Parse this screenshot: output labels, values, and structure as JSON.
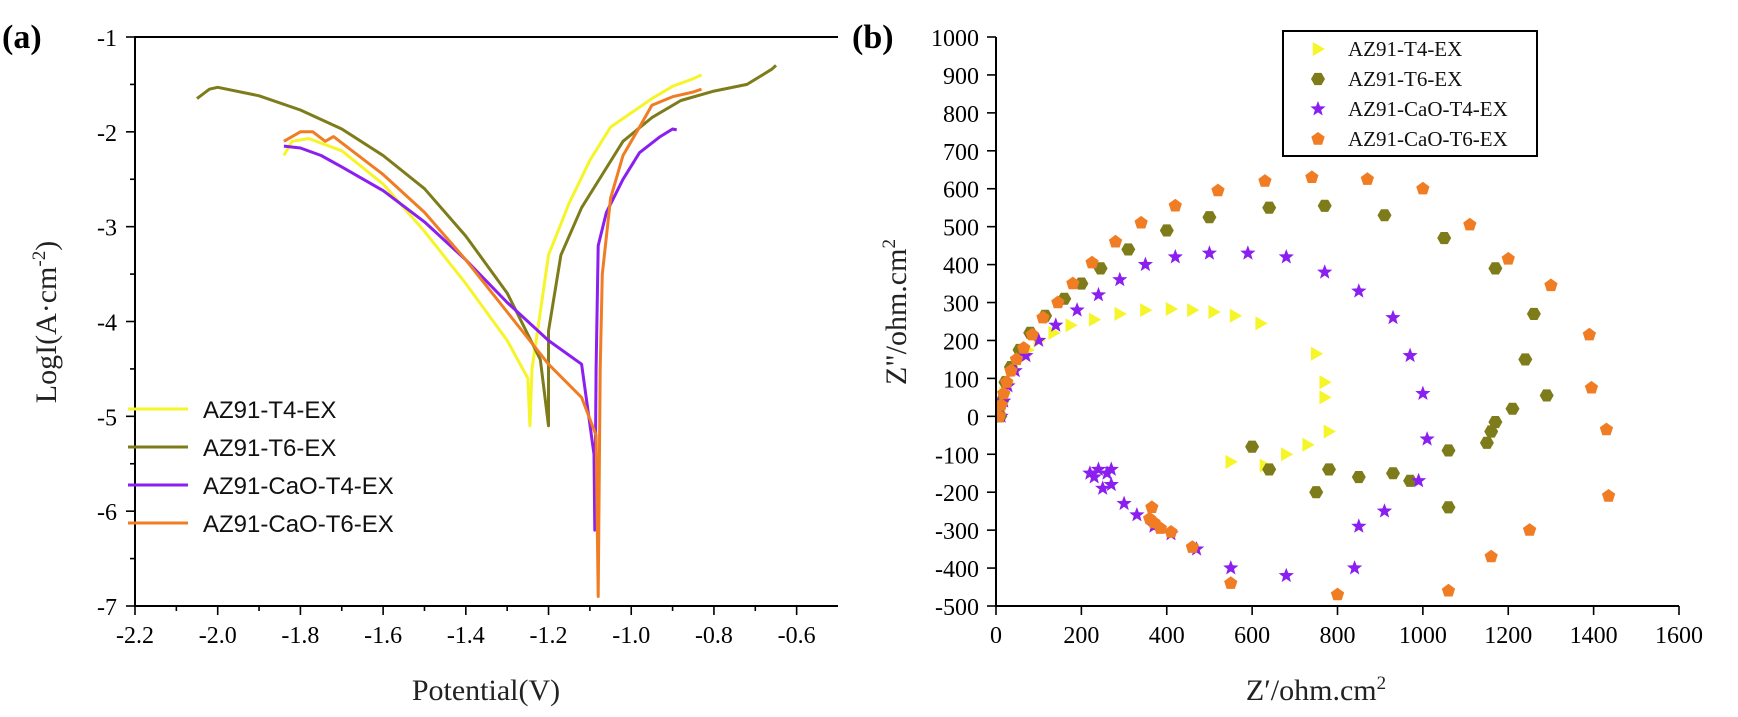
{
  "chart_data": [
    {
      "panel": "(a)",
      "type": "line",
      "xlabel": "Potential(V)",
      "ylabel_prefix": "LogI(A·cm",
      "ylabel_sup": "-2",
      "ylabel_suffix": ")",
      "xlim": [
        -2.2,
        -0.5
      ],
      "ylim": [
        -7,
        -1
      ],
      "xticks": [
        -2.2,
        -2.0,
        -1.8,
        -1.6,
        -1.4,
        -1.2,
        -1.0,
        -0.8,
        -0.6
      ],
      "xtick_labels": [
        "-2.2",
        "-2.0",
        "-1.8",
        "-1.6",
        "-1.4",
        "-1.2",
        "-1.0",
        "-0.8",
        "-0.6"
      ],
      "yticks": [
        -7,
        -6,
        -5,
        -4,
        -3,
        -2,
        -1
      ],
      "ytick_labels": [
        "-7",
        "-6",
        "-5",
        "-4",
        "-3",
        "-2",
        "-1"
      ],
      "legend_position": "bottom-left",
      "series": [
        {
          "name": "AZ91-T4-EX",
          "color": "#f5f52a",
          "points": [
            [
              -1.84,
              -2.25
            ],
            [
              -1.82,
              -2.1
            ],
            [
              -1.78,
              -2.07
            ],
            [
              -1.7,
              -2.2
            ],
            [
              -1.6,
              -2.55
            ],
            [
              -1.5,
              -3.05
            ],
            [
              -1.4,
              -3.6
            ],
            [
              -1.3,
              -4.2
            ],
            [
              -1.25,
              -4.6
            ],
            [
              -1.245,
              -5.1
            ],
            [
              -1.24,
              -4.5
            ],
            [
              -1.22,
              -3.9
            ],
            [
              -1.2,
              -3.3
            ],
            [
              -1.15,
              -2.75
            ],
            [
              -1.1,
              -2.3
            ],
            [
              -1.05,
              -1.95
            ],
            [
              -1.0,
              -1.8
            ],
            [
              -0.95,
              -1.65
            ],
            [
              -0.9,
              -1.52
            ],
            [
              -0.85,
              -1.44
            ],
            [
              -0.83,
              -1.4
            ]
          ]
        },
        {
          "name": "AZ91-T6-EX",
          "color": "#7e7c1a",
          "points": [
            [
              -2.05,
              -1.65
            ],
            [
              -2.02,
              -1.55
            ],
            [
              -2.0,
              -1.53
            ],
            [
              -1.9,
              -1.62
            ],
            [
              -1.8,
              -1.77
            ],
            [
              -1.7,
              -1.97
            ],
            [
              -1.6,
              -2.25
            ],
            [
              -1.5,
              -2.6
            ],
            [
              -1.4,
              -3.1
            ],
            [
              -1.3,
              -3.7
            ],
            [
              -1.22,
              -4.4
            ],
            [
              -1.2,
              -5.1
            ],
            [
              -1.2,
              -4.1
            ],
            [
              -1.17,
              -3.3
            ],
            [
              -1.12,
              -2.8
            ],
            [
              -1.07,
              -2.45
            ],
            [
              -1.02,
              -2.1
            ],
            [
              -0.95,
              -1.85
            ],
            [
              -0.88,
              -1.67
            ],
            [
              -0.8,
              -1.57
            ],
            [
              -0.72,
              -1.5
            ],
            [
              -0.66,
              -1.34
            ],
            [
              -0.65,
              -1.3
            ]
          ]
        },
        {
          "name": "AZ91-CaO-T4-EX",
          "color": "#8b1ff0",
          "points": [
            [
              -1.84,
              -2.15
            ],
            [
              -1.8,
              -2.17
            ],
            [
              -1.75,
              -2.25
            ],
            [
              -1.7,
              -2.37
            ],
            [
              -1.6,
              -2.62
            ],
            [
              -1.5,
              -2.95
            ],
            [
              -1.4,
              -3.35
            ],
            [
              -1.3,
              -3.8
            ],
            [
              -1.2,
              -4.2
            ],
            [
              -1.12,
              -4.45
            ],
            [
              -1.09,
              -5.4
            ],
            [
              -1.088,
              -6.2
            ],
            [
              -1.085,
              -4.5
            ],
            [
              -1.08,
              -3.2
            ],
            [
              -1.06,
              -2.85
            ],
            [
              -1.02,
              -2.5
            ],
            [
              -0.98,
              -2.22
            ],
            [
              -0.93,
              -2.05
            ],
            [
              -0.9,
              -1.97
            ],
            [
              -0.89,
              -1.98
            ]
          ]
        },
        {
          "name": "AZ91-CaO-T6-EX",
          "color": "#f07d24",
          "points": [
            [
              -1.84,
              -2.1
            ],
            [
              -1.8,
              -2.0
            ],
            [
              -1.77,
              -2.0
            ],
            [
              -1.74,
              -2.1
            ],
            [
              -1.72,
              -2.05
            ],
            [
              -1.6,
              -2.45
            ],
            [
              -1.5,
              -2.85
            ],
            [
              -1.4,
              -3.35
            ],
            [
              -1.3,
              -3.9
            ],
            [
              -1.2,
              -4.45
            ],
            [
              -1.12,
              -4.8
            ],
            [
              -1.085,
              -5.2
            ],
            [
              -1.08,
              -6.9
            ],
            [
              -1.075,
              -4.5
            ],
            [
              -1.07,
              -3.5
            ],
            [
              -1.05,
              -2.7
            ],
            [
              -1.02,
              -2.25
            ],
            [
              -0.98,
              -1.95
            ],
            [
              -0.95,
              -1.72
            ],
            [
              -0.9,
              -1.63
            ],
            [
              -0.85,
              -1.58
            ],
            [
              -0.83,
              -1.55
            ]
          ]
        }
      ]
    },
    {
      "panel": "(b)",
      "type": "scatter",
      "xlabel": "Z′/ohm.cm",
      "xlabel_sup": "2",
      "ylabel": "Z\"/ohm.cm",
      "ylabel_sup": "2",
      "xlim": [
        0,
        1600
      ],
      "ylim": [
        -500,
        1000
      ],
      "xticks": [
        0,
        200,
        400,
        600,
        800,
        1000,
        1200,
        1400,
        1600
      ],
      "xtick_labels": [
        "0",
        "200",
        "400",
        "600",
        "800",
        "1000",
        "1200",
        "1400",
        "1600"
      ],
      "yticks": [
        -500,
        -400,
        -300,
        -200,
        -100,
        0,
        100,
        200,
        300,
        400,
        500,
        600,
        700,
        800,
        900,
        1000
      ],
      "ytick_labels": [
        "-500",
        "-400",
        "-300",
        "-200",
        "-100",
        "0",
        "100",
        "200",
        "300",
        "400",
        "500",
        "600",
        "700",
        "800",
        "900",
        "1000"
      ],
      "legend_position": "top-right",
      "series": [
        {
          "name": "AZ91-T4-EX",
          "marker": "triangle-right",
          "color": "#f5f52a",
          "points": [
            [
              10,
              0
            ],
            [
              14,
              30
            ],
            [
              20,
              60
            ],
            [
              28,
              90
            ],
            [
              40,
              120
            ],
            [
              55,
              150
            ],
            [
              75,
              175
            ],
            [
              100,
              200
            ],
            [
              135,
              220
            ],
            [
              175,
              240
            ],
            [
              230,
              255
            ],
            [
              290,
              270
            ],
            [
              350,
              280
            ],
            [
              410,
              283
            ],
            [
              460,
              280
            ],
            [
              510,
              275
            ],
            [
              560,
              265
            ],
            [
              620,
              245
            ],
            [
              750,
              165
            ],
            [
              770,
              90
            ],
            [
              770,
              50
            ],
            [
              780,
              -40
            ],
            [
              730,
              -75
            ],
            [
              680,
              -100
            ],
            [
              630,
              -130
            ],
            [
              550,
              -120
            ]
          ]
        },
        {
          "name": "AZ91-T6-EX",
          "marker": "hexagon",
          "color": "#7e7c1a",
          "points": [
            [
              10,
              0
            ],
            [
              14,
              40
            ],
            [
              22,
              90
            ],
            [
              35,
              130
            ],
            [
              55,
              175
            ],
            [
              80,
              220
            ],
            [
              115,
              265
            ],
            [
              160,
              310
            ],
            [
              200,
              350
            ],
            [
              245,
              390
            ],
            [
              310,
              440
            ],
            [
              400,
              490
            ],
            [
              500,
              525
            ],
            [
              640,
              550
            ],
            [
              770,
              555
            ],
            [
              910,
              530
            ],
            [
              1050,
              470
            ],
            [
              1170,
              390
            ],
            [
              1260,
              270
            ],
            [
              1240,
              150
            ],
            [
              1210,
              20
            ],
            [
              1170,
              -15
            ],
            [
              1160,
              -40
            ],
            [
              1150,
              -70
            ],
            [
              1290,
              55
            ],
            [
              1060,
              -90
            ],
            [
              970,
              -170
            ],
            [
              930,
              -150
            ],
            [
              1060,
              -240
            ],
            [
              850,
              -160
            ],
            [
              780,
              -140
            ],
            [
              750,
              -200
            ],
            [
              640,
              -140
            ],
            [
              600,
              -80
            ]
          ]
        },
        {
          "name": "AZ91-CaO-T4-EX",
          "marker": "star",
          "color": "#8b1ff0",
          "points": [
            [
              12,
              0
            ],
            [
              18,
              40
            ],
            [
              28,
              80
            ],
            [
              45,
              120
            ],
            [
              70,
              160
            ],
            [
              100,
              200
            ],
            [
              140,
              240
            ],
            [
              190,
              280
            ],
            [
              240,
              320
            ],
            [
              290,
              360
            ],
            [
              350,
              400
            ],
            [
              420,
              420
            ],
            [
              500,
              430
            ],
            [
              590,
              430
            ],
            [
              680,
              420
            ],
            [
              770,
              380
            ],
            [
              850,
              330
            ],
            [
              930,
              260
            ],
            [
              970,
              160
            ],
            [
              1000,
              60
            ],
            [
              1010,
              -60
            ],
            [
              990,
              -170
            ],
            [
              910,
              -250
            ],
            [
              850,
              -290
            ],
            [
              840,
              -400
            ],
            [
              680,
              -420
            ],
            [
              550,
              -400
            ],
            [
              470,
              -350
            ],
            [
              410,
              -310
            ],
            [
              370,
              -290
            ],
            [
              330,
              -260
            ],
            [
              300,
              -230
            ],
            [
              270,
              -180
            ],
            [
              250,
              -190
            ],
            [
              230,
              -160
            ],
            [
              220,
              -150
            ],
            [
              240,
              -140
            ],
            [
              260,
              -150
            ],
            [
              270,
              -140
            ]
          ]
        },
        {
          "name": "AZ91-CaO-T6-EX",
          "marker": "pentagon",
          "color": "#f07d24",
          "points": [
            [
              8,
              0
            ],
            [
              12,
              30
            ],
            [
              18,
              60
            ],
            [
              25,
              90
            ],
            [
              35,
              120
            ],
            [
              48,
              150
            ],
            [
              65,
              180
            ],
            [
              85,
              215
            ],
            [
              110,
              260
            ],
            [
              145,
              300
            ],
            [
              180,
              350
            ],
            [
              225,
              405
            ],
            [
              280,
              460
            ],
            [
              340,
              510
            ],
            [
              420,
              555
            ],
            [
              520,
              595
            ],
            [
              630,
              620
            ],
            [
              740,
              630
            ],
            [
              870,
              625
            ],
            [
              1000,
              600
            ],
            [
              1110,
              505
            ],
            [
              1200,
              415
            ],
            [
              1300,
              345
            ],
            [
              1390,
              215
            ],
            [
              1395,
              75
            ],
            [
              1430,
              -35
            ],
            [
              1435,
              -210
            ],
            [
              1250,
              -300
            ],
            [
              1160,
              -370
            ],
            [
              1060,
              -460
            ],
            [
              800,
              -470
            ],
            [
              550,
              -440
            ],
            [
              460,
              -345
            ],
            [
              410,
              -305
            ],
            [
              385,
              -295
            ],
            [
              370,
              -280
            ],
            [
              360,
              -270
            ],
            [
              365,
              -240
            ]
          ]
        }
      ]
    }
  ]
}
